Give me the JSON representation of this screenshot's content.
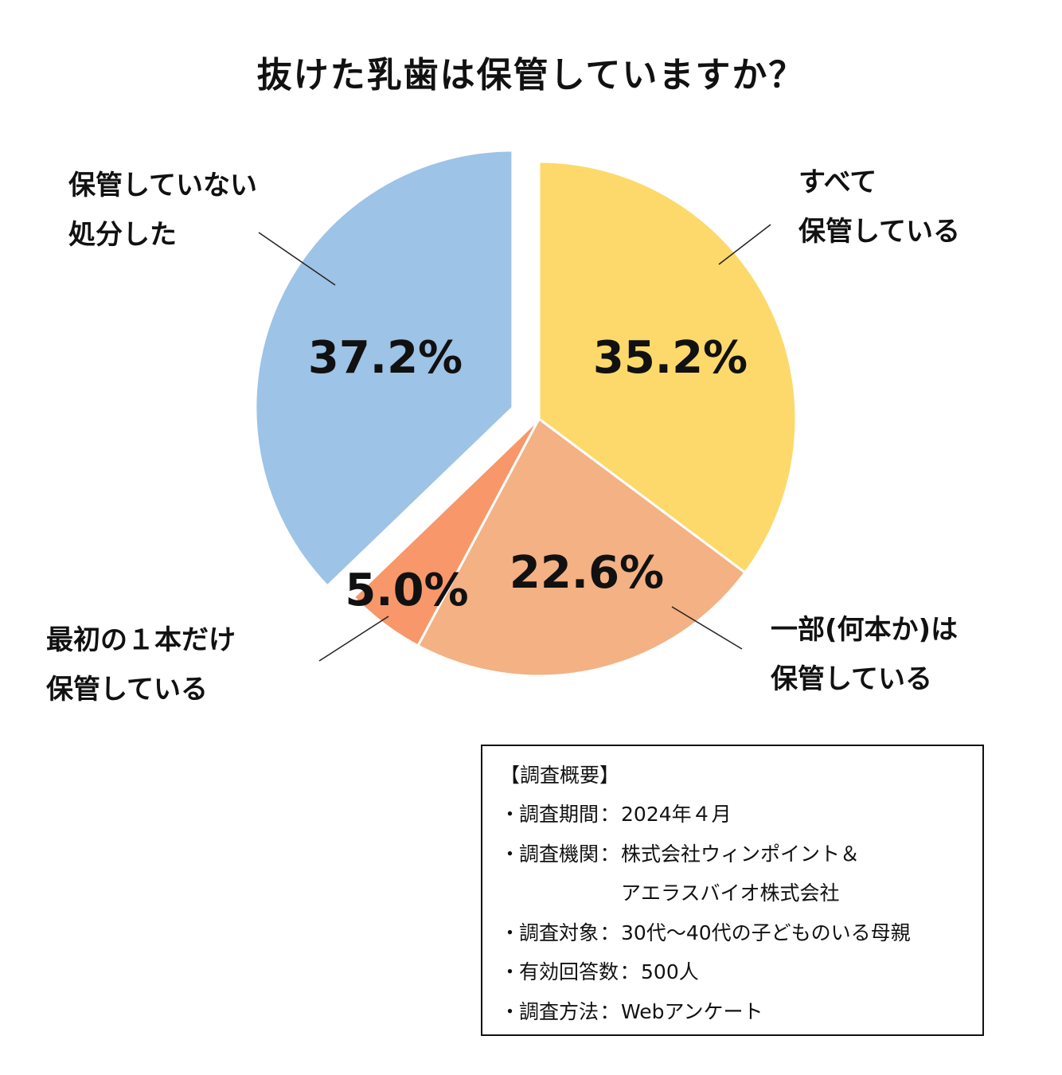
{
  "chart_data": {
    "type": "pie",
    "title": "抜けた乳歯は保管していますか？",
    "slices": [
      {
        "name": "すべて保管している",
        "label_lines": [
          "すべて",
          "保管している"
        ],
        "value": 35.2,
        "value_label": "35.2%",
        "color": "#FCD96A"
      },
      {
        "name": "一部(何本か)は保管している",
        "label_lines": [
          "一部(何本か)は",
          "保管している"
        ],
        "value": 22.6,
        "value_label": "22.6%",
        "color": "#F4B183"
      },
      {
        "name": "最初の１本だけ保管している",
        "label_lines": [
          "最初の１本だけ",
          "保管している"
        ],
        "value": 5.0,
        "value_label": "5.0%",
        "color": "#F7976A"
      },
      {
        "name": "保管していない処分した",
        "label_lines": [
          "保管していない",
          "処分した"
        ],
        "value": 37.2,
        "value_label": "37.2%",
        "color": "#9DC3E6",
        "exploded": true
      }
    ],
    "start_angle": "12 o'clock",
    "direction": "clockwise",
    "legend": "none"
  },
  "survey": {
    "heading": "【調査概要】",
    "items": [
      {
        "key": "調査期間",
        "values": [
          "2024年４月"
        ]
      },
      {
        "key": "調査機関",
        "values": [
          "株式会社ウィンポイント＆",
          "アエラスバイオ株式会社"
        ]
      },
      {
        "key": "調査対象",
        "values": [
          "30代〜40代の子どものいる母親"
        ]
      },
      {
        "key": "有効回答数",
        "values": [
          "500人"
        ]
      },
      {
        "key": "調査方法",
        "values": [
          "Webアンケート"
        ]
      }
    ],
    "bullet": "・",
    "separator": "："
  }
}
